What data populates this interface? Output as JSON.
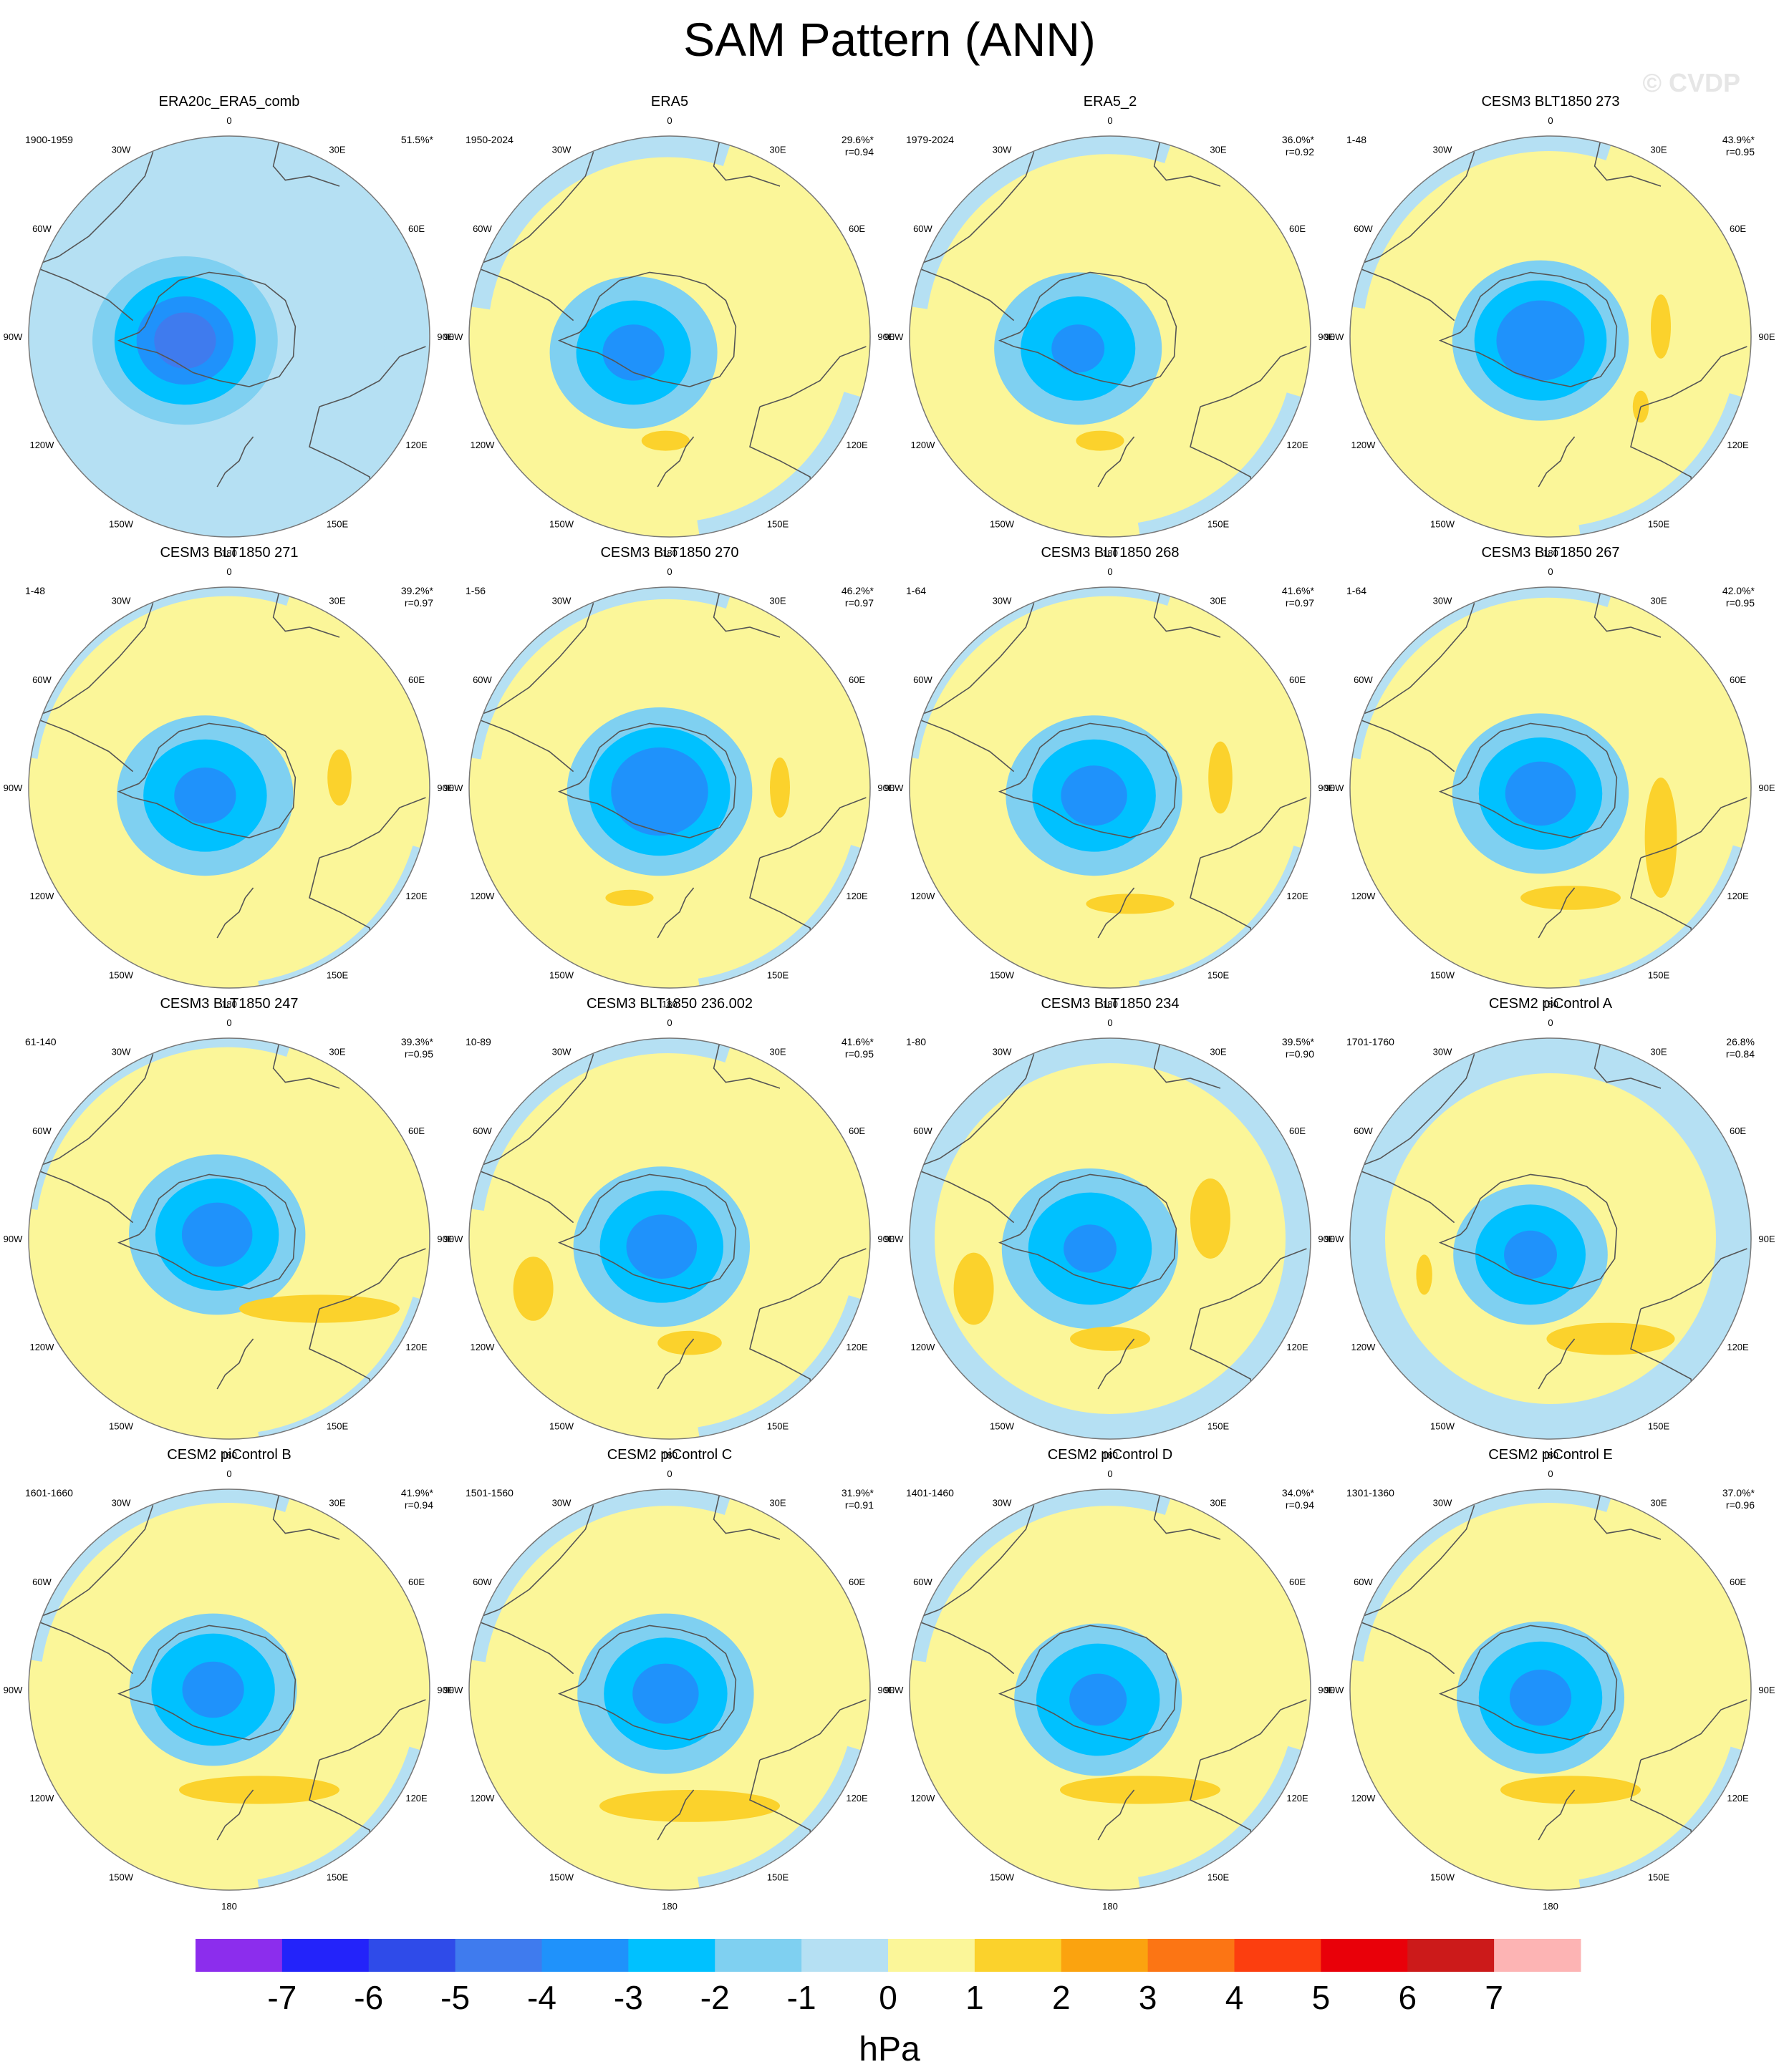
{
  "title": "SAM Pattern (ANN)",
  "watermark": "© CVDP",
  "colors": {
    "land": "#555555",
    "rim": "#777777",
    "levels": [
      "#8c2ded",
      "#2323fa",
      "#2f4be9",
      "#3f7bee",
      "#1f92fb",
      "#00c1ff",
      "#7fd0f1",
      "#b5e0f3",
      "#fbf699",
      "#fbd22c",
      "#fba30f",
      "#fc7514",
      "#fc3e0f",
      "#e90009",
      "#cc1a1a",
      "#fdb4b4"
    ]
  },
  "colorbar": {
    "labels": [
      "-7",
      "-6",
      "-5",
      "-4",
      "-3",
      "-2",
      "-1",
      "0",
      "1",
      "2",
      "3",
      "4",
      "5",
      "6",
      "7"
    ],
    "units": "hPa"
  },
  "lon_labels": [
    "0",
    "30E",
    "60E",
    "90E",
    "120E",
    "150E",
    "180",
    "150W",
    "120W",
    "90W",
    "60W",
    "30W"
  ],
  "panels": [
    {
      "title": "ERA20c_ERA5_comb",
      "period": "1900-1959",
      "pct": "51.5%*",
      "r": "",
      "pattern": {
        "base": 7,
        "ocean": "ring",
        "ocean_strength": 0.9,
        "rings": [
          [
            0.42,
            1
          ],
          [
            0.32,
            2
          ],
          [
            0.22,
            3
          ],
          [
            0.14,
            4
          ]
        ],
        "centroid": [
          -0.22,
          0.02
        ],
        "pos": []
      }
    },
    {
      "title": "ERA5",
      "period": "1950-2024",
      "pct": "29.6%*",
      "r": "r=0.94",
      "pattern": {
        "base": 8,
        "ocean": "arc",
        "ocean_strength": 0.7,
        "rings": [
          [
            0.38,
            1
          ],
          [
            0.26,
            2
          ],
          [
            0.14,
            3
          ]
        ],
        "centroid": [
          -0.18,
          0.08
        ],
        "pos": [
          [
            -0.02,
            0.52,
            0.12,
            0.05,
            9
          ]
        ]
      }
    },
    {
      "title": "ERA5_2",
      "period": "1979-2024",
      "pct": "36.0%*",
      "r": "r=0.92",
      "pattern": {
        "base": 8,
        "ocean": "arc",
        "ocean_strength": 0.6,
        "rings": [
          [
            0.38,
            1
          ],
          [
            0.26,
            2
          ],
          [
            0.12,
            3
          ]
        ],
        "centroid": [
          -0.16,
          0.06
        ],
        "pos": [
          [
            -0.05,
            0.52,
            0.12,
            0.05,
            9
          ]
        ]
      }
    },
    {
      "title": "CESM3 BLT1850 273",
      "period": "1-48",
      "pct": "43.9%*",
      "r": "r=0.95",
      "pattern": {
        "base": 8,
        "ocean": "arc",
        "ocean_strength": 0.5,
        "rings": [
          [
            0.4,
            1
          ],
          [
            0.3,
            2
          ],
          [
            0.2,
            3
          ]
        ],
        "centroid": [
          -0.05,
          0.02
        ],
        "pos": [
          [
            0.55,
            -0.05,
            0.05,
            0.16,
            9
          ],
          [
            0.45,
            0.35,
            0.04,
            0.08,
            9
          ]
        ]
      }
    },
    {
      "title": "CESM3 BLT1850 271",
      "period": "1-48",
      "pct": "39.2%*",
      "r": "r=0.97",
      "pattern": {
        "base": 8,
        "ocean": "arc",
        "ocean_strength": 0.3,
        "rings": [
          [
            0.4,
            1
          ],
          [
            0.28,
            2
          ],
          [
            0.14,
            3
          ]
        ],
        "centroid": [
          -0.12,
          0.04
        ],
        "pos": [
          [
            0.55,
            -0.05,
            0.06,
            0.14,
            9
          ]
        ]
      }
    },
    {
      "title": "CESM3 BLT1850 270",
      "period": "1-56",
      "pct": "46.2%*",
      "r": "r=0.97",
      "pattern": {
        "base": 8,
        "ocean": "arc",
        "ocean_strength": 0.4,
        "rings": [
          [
            0.42,
            1
          ],
          [
            0.32,
            2
          ],
          [
            0.22,
            3
          ]
        ],
        "centroid": [
          -0.05,
          0.02
        ],
        "pos": [
          [
            0.55,
            0.0,
            0.05,
            0.15,
            9
          ],
          [
            -0.2,
            0.55,
            0.12,
            0.04,
            9
          ]
        ]
      }
    },
    {
      "title": "CESM3 BLT1850 268",
      "period": "1-64",
      "pct": "41.6%*",
      "r": "r=0.97",
      "pattern": {
        "base": 8,
        "ocean": "arc",
        "ocean_strength": 0.3,
        "rings": [
          [
            0.4,
            1
          ],
          [
            0.28,
            2
          ],
          [
            0.15,
            3
          ]
        ],
        "centroid": [
          -0.08,
          0.04
        ],
        "pos": [
          [
            0.55,
            -0.05,
            0.06,
            0.18,
            9
          ],
          [
            0.1,
            0.58,
            0.22,
            0.05,
            9
          ]
        ]
      }
    },
    {
      "title": "CESM3 BLT1850 267",
      "period": "1-64",
      "pct": "42.0%*",
      "r": "r=0.95",
      "pattern": {
        "base": 8,
        "ocean": "arc",
        "ocean_strength": 0.35,
        "rings": [
          [
            0.4,
            1
          ],
          [
            0.28,
            2
          ],
          [
            0.16,
            3
          ]
        ],
        "centroid": [
          -0.05,
          0.03
        ],
        "pos": [
          [
            0.55,
            0.25,
            0.08,
            0.3,
            9
          ],
          [
            0.1,
            0.55,
            0.25,
            0.06,
            9
          ]
        ]
      }
    },
    {
      "title": "CESM3 BLT1850 247",
      "period": "61-140",
      "pct": "39.3%*",
      "r": "r=0.95",
      "pattern": {
        "base": 8,
        "ocean": "arc",
        "ocean_strength": 0.3,
        "rings": [
          [
            0.4,
            1
          ],
          [
            0.28,
            2
          ],
          [
            0.16,
            3
          ]
        ],
        "centroid": [
          -0.06,
          -0.02
        ],
        "pos": [
          [
            0.45,
            0.35,
            0.4,
            0.07,
            9
          ]
        ]
      }
    },
    {
      "title": "CESM3 BLT1850 236.002",
      "period": "10-89",
      "pct": "41.6%*",
      "r": "r=0.95",
      "pattern": {
        "base": 8,
        "ocean": "arc",
        "ocean_strength": 0.5,
        "rings": [
          [
            0.4,
            1
          ],
          [
            0.28,
            2
          ],
          [
            0.16,
            3
          ]
        ],
        "centroid": [
          -0.04,
          0.04
        ],
        "pos": [
          [
            -0.68,
            0.25,
            0.1,
            0.16,
            9
          ],
          [
            0.1,
            0.52,
            0.16,
            0.06,
            9
          ]
        ]
      }
    },
    {
      "title": "CESM3 BLT1850 234",
      "period": "1-80",
      "pct": "39.5%*",
      "r": "r=0.90",
      "pattern": {
        "base": 8,
        "ocean": "ring",
        "ocean_strength": 0.5,
        "rings": [
          [
            0.4,
            1
          ],
          [
            0.28,
            2
          ],
          [
            0.12,
            3
          ]
        ],
        "centroid": [
          -0.1,
          0.05
        ],
        "pos": [
          [
            0.5,
            -0.1,
            0.1,
            0.2,
            9
          ],
          [
            -0.68,
            0.25,
            0.1,
            0.18,
            9
          ],
          [
            0.0,
            0.5,
            0.2,
            0.06,
            9
          ]
        ]
      }
    },
    {
      "title": "CESM2 piControl A",
      "period": "1701-1760",
      "pct": "26.8%",
      "r": "r=0.84",
      "pattern": {
        "base": 8,
        "ocean": "ring",
        "ocean_strength": 0.7,
        "rings": [
          [
            0.35,
            1
          ],
          [
            0.25,
            2
          ],
          [
            0.12,
            3
          ]
        ],
        "centroid": [
          -0.1,
          0.08
        ],
        "pos": [
          [
            0.3,
            0.5,
            0.32,
            0.08,
            9
          ],
          [
            -0.63,
            0.18,
            0.04,
            0.1,
            9
          ]
        ]
      }
    },
    {
      "title": "CESM2 piControl B",
      "period": "1601-1660",
      "pct": "41.9%*",
      "r": "r=0.94",
      "pattern": {
        "base": 8,
        "ocean": "arc",
        "ocean_strength": 0.45,
        "rings": [
          [
            0.38,
            1
          ],
          [
            0.28,
            2
          ],
          [
            0.14,
            3
          ]
        ],
        "centroid": [
          -0.08,
          0.0
        ],
        "pos": [
          [
            0.15,
            0.5,
            0.4,
            0.07,
            9
          ]
        ]
      }
    },
    {
      "title": "CESM2 piControl C",
      "period": "1501-1560",
      "pct": "31.9%*",
      "r": "r=0.91",
      "pattern": {
        "base": 8,
        "ocean": "arc",
        "ocean_strength": 0.55,
        "rings": [
          [
            0.4,
            1
          ],
          [
            0.28,
            2
          ],
          [
            0.15,
            3
          ]
        ],
        "centroid": [
          -0.02,
          0.02
        ],
        "pos": [
          [
            0.1,
            0.58,
            0.45,
            0.08,
            9
          ]
        ]
      }
    },
    {
      "title": "CESM2 piControl D",
      "period": "1401-1460",
      "pct": "34.0%*",
      "r": "r=0.94",
      "pattern": {
        "base": 8,
        "ocean": "arc",
        "ocean_strength": 0.55,
        "rings": [
          [
            0.38,
            1
          ],
          [
            0.28,
            2
          ],
          [
            0.13,
            3
          ]
        ],
        "centroid": [
          -0.06,
          0.05
        ],
        "pos": [
          [
            0.15,
            0.5,
            0.4,
            0.07,
            9
          ]
        ]
      }
    },
    {
      "title": "CESM2 piControl E",
      "period": "1301-1360",
      "pct": "37.0%*",
      "r": "r=0.96",
      "pattern": {
        "base": 8,
        "ocean": "arc",
        "ocean_strength": 0.45,
        "rings": [
          [
            0.38,
            1
          ],
          [
            0.28,
            2
          ],
          [
            0.14,
            3
          ]
        ],
        "centroid": [
          -0.05,
          0.04
        ],
        "pos": [
          [
            0.1,
            0.5,
            0.35,
            0.07,
            9
          ]
        ]
      }
    }
  ]
}
